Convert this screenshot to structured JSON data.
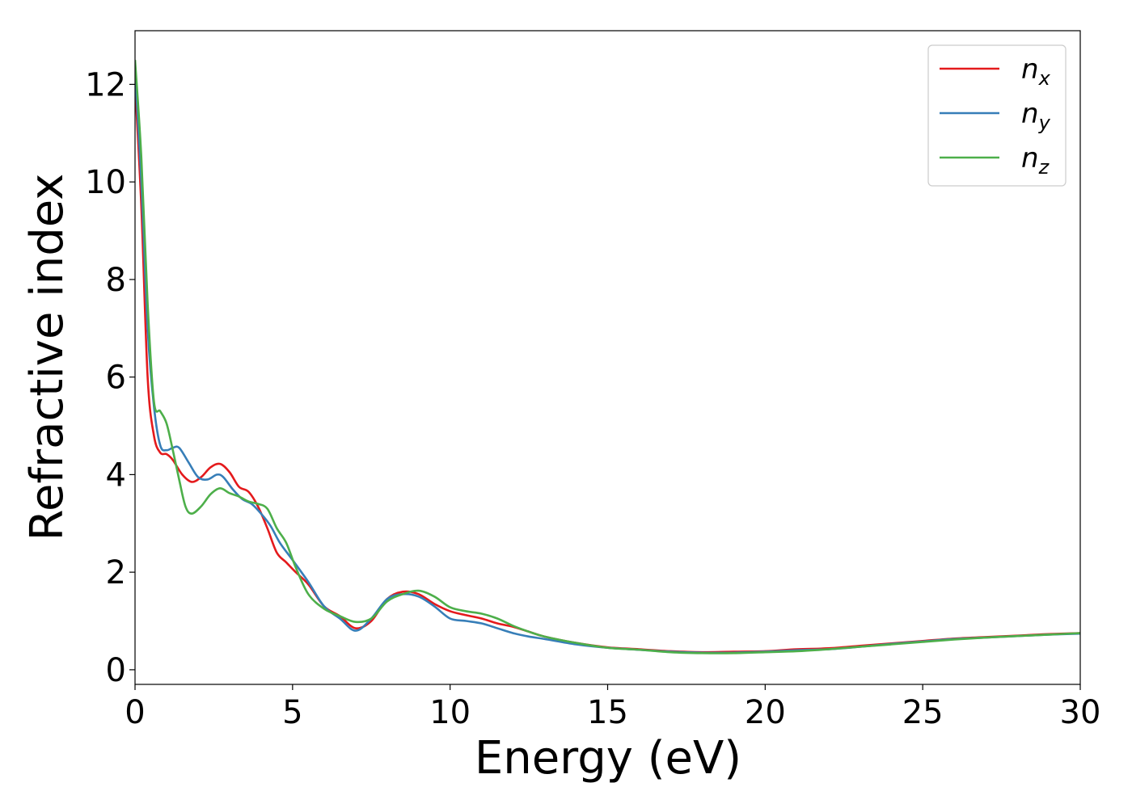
{
  "chart_data": {
    "type": "line",
    "xlabel": "Energy (eV)",
    "ylabel": "Refractive index",
    "xlim": [
      0,
      30
    ],
    "ylim": [
      -0.3,
      13.1
    ],
    "xticks": [
      0,
      5,
      10,
      15,
      20,
      25,
      30
    ],
    "yticks": [
      0,
      2,
      4,
      6,
      8,
      10,
      12
    ],
    "grid": false,
    "legend_position": "top-right",
    "series": [
      {
        "name": "n",
        "subscript": "x",
        "color": "#e41a1c",
        "x": [
          0,
          0.2,
          0.4,
          0.6,
          0.8,
          1.0,
          1.2,
          1.5,
          1.8,
          2.1,
          2.4,
          2.7,
          3.0,
          3.3,
          3.6,
          3.9,
          4.2,
          4.5,
          4.8,
          5.1,
          5.5,
          6.0,
          6.5,
          7.0,
          7.5,
          8.0,
          8.5,
          9.0,
          9.5,
          10.0,
          10.5,
          11.0,
          11.5,
          12.0,
          12.5,
          13.0,
          14.0,
          15.0,
          16.0,
          17.0,
          18.0,
          19.0,
          20.0,
          21.0,
          22.0,
          23.0,
          24.0,
          25.0,
          26.0,
          27.0,
          28.0,
          29.0,
          30.0
        ],
        "y": [
          12.0,
          9.5,
          6.0,
          4.8,
          4.45,
          4.42,
          4.3,
          4.0,
          3.85,
          3.95,
          4.15,
          4.22,
          4.05,
          3.75,
          3.65,
          3.35,
          2.9,
          2.4,
          2.2,
          2.0,
          1.75,
          1.3,
          1.1,
          0.85,
          1.0,
          1.45,
          1.6,
          1.55,
          1.35,
          1.2,
          1.12,
          1.05,
          0.95,
          0.88,
          0.78,
          0.68,
          0.55,
          0.46,
          0.42,
          0.38,
          0.36,
          0.37,
          0.38,
          0.42,
          0.44,
          0.49,
          0.54,
          0.59,
          0.64,
          0.67,
          0.7,
          0.73,
          0.75
        ]
      },
      {
        "name": "n",
        "subscript": "y",
        "color": "#377eb8",
        "x": [
          0,
          0.2,
          0.4,
          0.6,
          0.8,
          1.0,
          1.2,
          1.4,
          1.7,
          2.0,
          2.3,
          2.6,
          2.8,
          3.1,
          3.4,
          3.7,
          4.0,
          4.3,
          4.6,
          5.0,
          5.5,
          6.0,
          6.5,
          7.0,
          7.5,
          8.0,
          8.5,
          9.0,
          9.5,
          10.0,
          10.5,
          11.0,
          11.5,
          12.0,
          12.5,
          13.0,
          14.0,
          15.0,
          16.0,
          17.0,
          18.0,
          19.0,
          20.0,
          21.0,
          22.0,
          23.0,
          24.0,
          25.0,
          26.0,
          27.0,
          28.0,
          29.0,
          30.0
        ],
        "y": [
          12.3,
          10.0,
          7.0,
          5.4,
          4.6,
          4.5,
          4.55,
          4.55,
          4.25,
          3.95,
          3.9,
          4.0,
          3.95,
          3.7,
          3.5,
          3.4,
          3.2,
          2.95,
          2.6,
          2.25,
          1.8,
          1.3,
          1.05,
          0.8,
          1.05,
          1.45,
          1.55,
          1.5,
          1.3,
          1.05,
          1.0,
          0.95,
          0.85,
          0.75,
          0.68,
          0.63,
          0.52,
          0.45,
          0.41,
          0.37,
          0.35,
          0.35,
          0.37,
          0.4,
          0.42,
          0.47,
          0.53,
          0.58,
          0.63,
          0.66,
          0.69,
          0.72,
          0.74
        ]
      },
      {
        "name": "n",
        "subscript": "z",
        "color": "#4daf4a",
        "x": [
          0,
          0.2,
          0.4,
          0.6,
          0.8,
          1.0,
          1.2,
          1.4,
          1.6,
          1.8,
          2.1,
          2.4,
          2.7,
          3.0,
          3.3,
          3.6,
          3.9,
          4.2,
          4.5,
          4.8,
          5.1,
          5.5,
          6.0,
          6.5,
          7.0,
          7.5,
          8.0,
          8.5,
          9.0,
          9.5,
          10.0,
          10.5,
          11.0,
          11.5,
          12.0,
          12.5,
          13.0,
          14.0,
          15.0,
          16.0,
          17.0,
          18.0,
          19.0,
          20.0,
          21.0,
          22.0,
          23.0,
          24.0,
          25.0,
          26.0,
          27.0,
          28.0,
          29.0,
          30.0
        ],
        "y": [
          12.5,
          10.5,
          7.5,
          5.5,
          5.3,
          5.05,
          4.5,
          3.9,
          3.35,
          3.2,
          3.35,
          3.6,
          3.72,
          3.62,
          3.55,
          3.45,
          3.4,
          3.3,
          2.9,
          2.6,
          2.1,
          1.55,
          1.25,
          1.1,
          0.98,
          1.05,
          1.4,
          1.55,
          1.62,
          1.5,
          1.28,
          1.2,
          1.15,
          1.05,
          0.9,
          0.78,
          0.68,
          0.55,
          0.45,
          0.41,
          0.36,
          0.34,
          0.34,
          0.36,
          0.38,
          0.42,
          0.47,
          0.52,
          0.57,
          0.62,
          0.66,
          0.69,
          0.72,
          0.75
        ]
      }
    ]
  }
}
